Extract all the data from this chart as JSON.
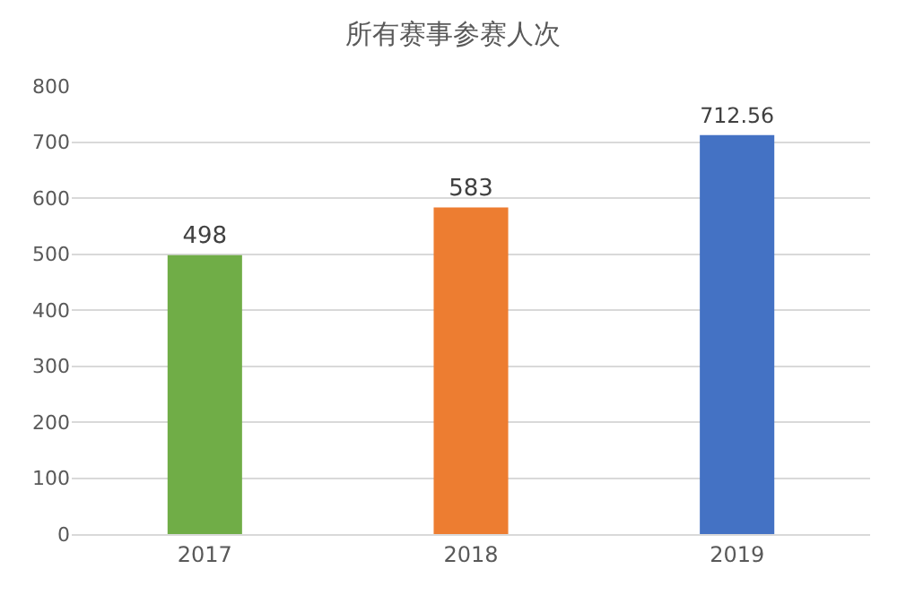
{
  "chart_data": {
    "type": "bar",
    "title": "所有赛事参赛人次",
    "categories": [
      "2017",
      "2018",
      "2019"
    ],
    "values": [
      498,
      583,
      712.56
    ],
    "colors": [
      "#70ad47",
      "#ed7d31",
      "#4472c4"
    ],
    "ylim": [
      0,
      800
    ],
    "yticks": [
      0,
      100,
      200,
      300,
      400,
      500,
      600,
      700,
      800
    ],
    "grid": "y",
    "data_labels": true
  }
}
